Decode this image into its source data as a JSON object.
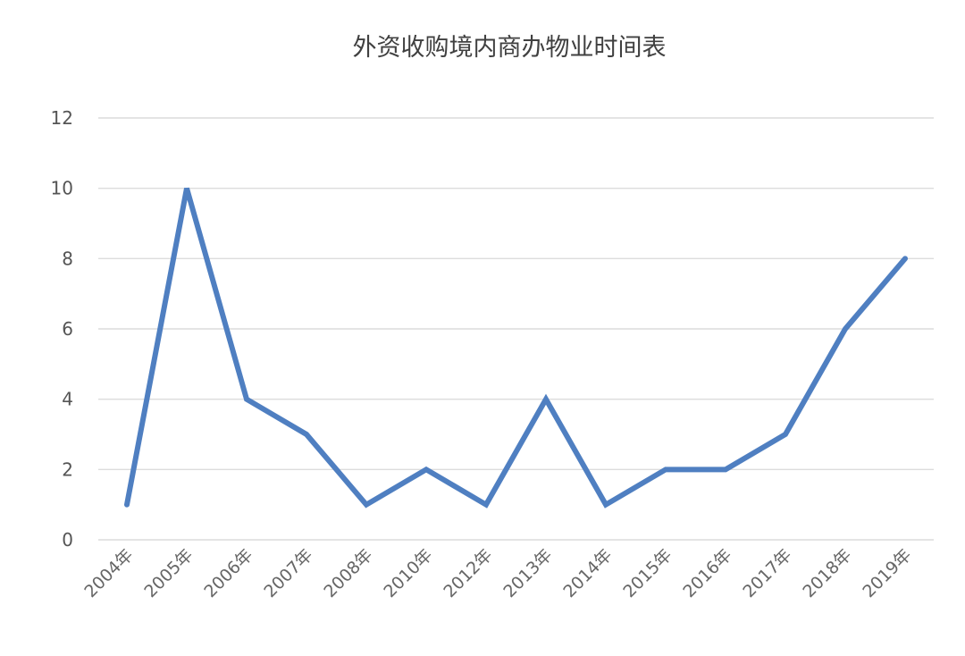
{
  "chart_data": {
    "type": "line",
    "title": "外资收购境内商办物业时间表",
    "xlabel": "",
    "ylabel": "",
    "categories": [
      "2004年",
      "2005年",
      "2006年",
      "2007年",
      "2008年",
      "2010年",
      "2012年",
      "2013年",
      "2014年",
      "2015年",
      "2016年",
      "2017年",
      "2018年",
      "2019年"
    ],
    "series": [
      {
        "values": [
          1,
          10,
          4,
          3,
          1,
          2,
          1,
          4,
          1,
          2,
          2,
          3,
          6,
          8
        ]
      }
    ],
    "ylim": [
      0,
      12
    ],
    "yticks": [
      "0",
      "2",
      "4",
      "6",
      "8",
      "10",
      "12"
    ],
    "grid": true,
    "legend": "none",
    "colors": {
      "line": "#4f7fc1",
      "grid": "#dcdcdc"
    }
  }
}
